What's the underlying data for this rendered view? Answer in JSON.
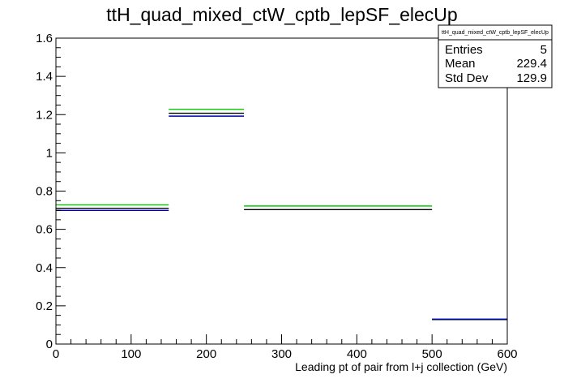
{
  "chart_data": {
    "type": "step",
    "title": "ttH_quad_mixed_ctW_cptb_lepSF_elecUp",
    "xlabel": "Leading pt of pair from l+j collection (GeV)",
    "ylabel": "",
    "xlim": [
      0,
      600
    ],
    "ylim": [
      0,
      1.6
    ],
    "x_ticks": [
      "0",
      "100",
      "200",
      "300",
      "400",
      "500",
      "600"
    ],
    "y_ticks": [
      "0",
      "0.2",
      "0.4",
      "0.6",
      "0.8",
      "1",
      "1.2",
      "1.4",
      "1.6"
    ],
    "bin_edges": [
      0,
      150,
      250,
      500,
      600
    ],
    "series": [
      {
        "color": "#00cc00",
        "values": [
          0.728,
          1.228,
          0.722,
          0.13
        ]
      },
      {
        "color": "#000000",
        "values": [
          0.71,
          1.207,
          0.703,
          0.128
        ]
      },
      {
        "color": "#0000aa",
        "values": [
          0.699,
          1.192,
          0.0,
          0.13
        ]
      }
    ],
    "grid": false,
    "stats_box": {
      "name": "ttH_quad_mixed_ctW_cptb_lepSF_elecUp",
      "rows": [
        {
          "label": "Entries",
          "value": "5"
        },
        {
          "label": "Mean",
          "value": "229.4"
        },
        {
          "label": "Std Dev",
          "value": "129.9"
        }
      ]
    }
  }
}
